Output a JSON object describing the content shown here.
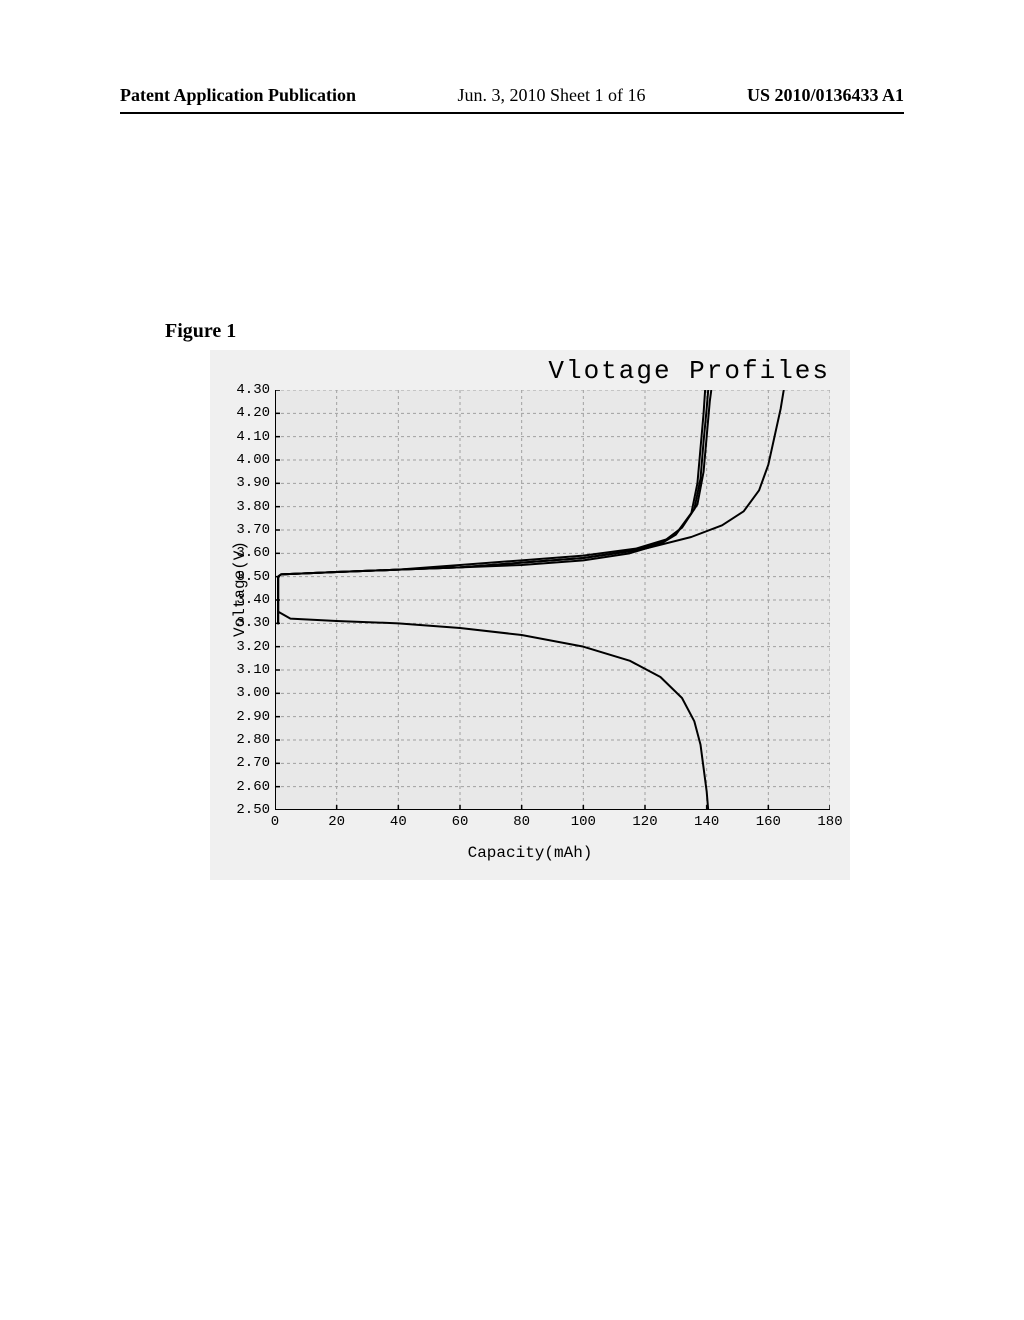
{
  "header": {
    "left": "Patent Application Publication",
    "center": "Jun. 3, 2010  Sheet 1 of 16",
    "right": "US 2010/0136433 A1"
  },
  "figure_label": "Figure 1",
  "chart": {
    "type": "line",
    "title": "Vlotage Profiles",
    "xlabel": "Capacity(mAh)",
    "ylabel": "Voltage(V)",
    "xlim": [
      0,
      180
    ],
    "ylim": [
      2.5,
      4.3
    ],
    "xtick_step": 20,
    "ytick_step": 0.1,
    "xticks": [
      0,
      20,
      40,
      60,
      80,
      100,
      120,
      140,
      160,
      180
    ],
    "yticks": [
      2.5,
      2.6,
      2.7,
      2.8,
      2.9,
      3.0,
      3.1,
      3.2,
      3.3,
      3.4,
      3.5,
      3.6,
      3.7,
      3.8,
      3.9,
      4.0,
      4.1,
      4.2,
      4.3
    ],
    "background_color": "#f0f0f0",
    "plot_bg_color": "#e8e8e8",
    "grid_color": "#a0a0a0",
    "axis_color": "#000000",
    "line_color": "#000000",
    "line_width": 2.0,
    "title_fontsize": 26,
    "label_fontsize": 16,
    "tick_fontsize": 14,
    "font_family": "Courier New",
    "curves": {
      "charge_bundle": {
        "comment": "Multiple overlapping charge curves ~140 mAh endpoint",
        "series": [
          [
            [
              1,
              3.3
            ],
            [
              1,
              3.5
            ],
            [
              2,
              3.51
            ],
            [
              20,
              3.52
            ],
            [
              40,
              3.53
            ],
            [
              60,
              3.54
            ],
            [
              80,
              3.55
            ],
            [
              100,
              3.57
            ],
            [
              115,
              3.6
            ],
            [
              125,
              3.64
            ],
            [
              130,
              3.68
            ],
            [
              135,
              3.77
            ],
            [
              137,
              3.9
            ],
            [
              138,
              4.05
            ],
            [
              139,
              4.2
            ],
            [
              139.5,
              4.3
            ]
          ],
          [
            [
              1,
              3.3
            ],
            [
              1,
              3.5
            ],
            [
              2,
              3.51
            ],
            [
              20,
              3.52
            ],
            [
              40,
              3.53
            ],
            [
              60,
              3.54
            ],
            [
              80,
              3.56
            ],
            [
              100,
              3.58
            ],
            [
              116,
              3.61
            ],
            [
              126,
              3.65
            ],
            [
              131,
              3.7
            ],
            [
              136,
              3.79
            ],
            [
              138,
              3.92
            ],
            [
              139,
              4.08
            ],
            [
              140,
              4.22
            ],
            [
              140.5,
              4.3
            ]
          ],
          [
            [
              1,
              3.3
            ],
            [
              1,
              3.5
            ],
            [
              2,
              3.51
            ],
            [
              20,
              3.52
            ],
            [
              40,
              3.53
            ],
            [
              60,
              3.55
            ],
            [
              80,
              3.57
            ],
            [
              100,
              3.59
            ],
            [
              117,
              3.62
            ],
            [
              127,
              3.66
            ],
            [
              132,
              3.71
            ],
            [
              137,
              3.81
            ],
            [
              139,
              3.95
            ],
            [
              140,
              4.1
            ],
            [
              141,
              4.25
            ],
            [
              141.5,
              4.3
            ]
          ]
        ]
      },
      "charge_high": {
        "comment": "Single charge curve extended to ~165 mAh",
        "series": [
          [
            [
              1,
              3.3
            ],
            [
              1,
              3.5
            ],
            [
              2,
              3.51
            ],
            [
              20,
              3.52
            ],
            [
              40,
              3.53
            ],
            [
              60,
              3.54
            ],
            [
              80,
              3.56
            ],
            [
              100,
              3.58
            ],
            [
              120,
              3.62
            ],
            [
              135,
              3.67
            ],
            [
              145,
              3.72
            ],
            [
              152,
              3.78
            ],
            [
              157,
              3.87
            ],
            [
              160,
              3.98
            ],
            [
              162,
              4.1
            ],
            [
              164,
              4.22
            ],
            [
              165,
              4.3
            ]
          ]
        ]
      },
      "discharge": {
        "comment": "Discharge curve",
        "series": [
          [
            [
              1,
              3.5
            ],
            [
              1,
              3.35
            ],
            [
              5,
              3.32
            ],
            [
              20,
              3.31
            ],
            [
              40,
              3.3
            ],
            [
              60,
              3.28
            ],
            [
              80,
              3.25
            ],
            [
              100,
              3.2
            ],
            [
              115,
              3.14
            ],
            [
              125,
              3.07
            ],
            [
              132,
              2.98
            ],
            [
              136,
              2.88
            ],
            [
              138,
              2.78
            ],
            [
              139,
              2.68
            ],
            [
              140,
              2.58
            ],
            [
              140.5,
              2.5
            ]
          ]
        ]
      }
    }
  }
}
